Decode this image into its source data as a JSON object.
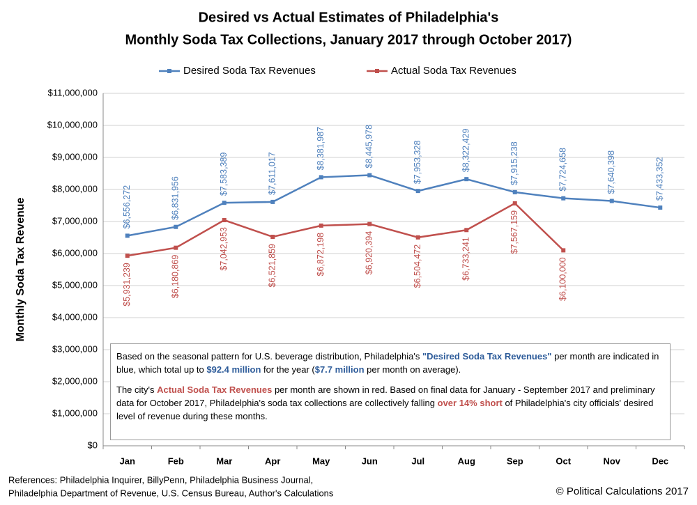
{
  "chart_data": {
    "type": "line",
    "title": [
      "Desired vs Actual Estimates of Philadelphia's",
      "Monthly Soda Tax Collections, January 2017 through October 2017)"
    ],
    "y_axis_label": "Monthly Soda Tax Revenue",
    "categories": [
      "Jan",
      "Feb",
      "Mar",
      "Apr",
      "May",
      "Jun",
      "Jul",
      "Aug",
      "Sep",
      "Oct",
      "Nov",
      "Dec"
    ],
    "series": [
      {
        "name": "Desired Soda Tax Revenues",
        "color": "#4f81bd",
        "values": [
          6556272,
          6831956,
          7583389,
          7611017,
          8381987,
          8445978,
          7953328,
          8322429,
          7915238,
          7724658,
          7640398,
          7433352
        ],
        "value_labels": [
          "$6,556,272",
          "$6,831,956",
          "$7,583,389",
          "$7,611,017",
          "$8,381,987",
          "$8,445,978",
          "$7,953,328",
          "$8,322,429",
          "$7,915,238",
          "$7,724,658",
          "$7,640,398",
          "$7,433,352"
        ],
        "label_position": "above"
      },
      {
        "name": "Actual Soda Tax Revenues",
        "color": "#c0504d",
        "values": [
          5931239,
          6180869,
          7042953,
          6521859,
          6872198,
          6920394,
          6504472,
          6733241,
          7567159,
          6100000,
          null,
          null
        ],
        "value_labels": [
          "$5,931,239",
          "$6,180,869",
          "$7,042,953",
          "$6,521,859",
          "$6,872,198",
          "$6,920,394",
          "$6,504,472",
          "$6,733,241",
          "$7,567,159",
          "$6,100,000",
          null,
          null
        ],
        "label_position": "below"
      }
    ],
    "ylim": [
      0,
      11000000
    ],
    "yticks": [
      {
        "value": 0,
        "label": "$0"
      },
      {
        "value": 1000000,
        "label": "$1,000,000"
      },
      {
        "value": 2000000,
        "label": "$2,000,000"
      },
      {
        "value": 3000000,
        "label": "$3,000,000"
      },
      {
        "value": 4000000,
        "label": "$4,000,000"
      },
      {
        "value": 5000000,
        "label": "$5,000,000"
      },
      {
        "value": 6000000,
        "label": "$6,000,000"
      },
      {
        "value": 7000000,
        "label": "$7,000,000"
      },
      {
        "value": 8000000,
        "label": "$8,000,000"
      },
      {
        "value": 9000000,
        "label": "$9,000,000"
      },
      {
        "value": 10000000,
        "label": "$10,000,000"
      },
      {
        "value": 11000000,
        "label": "$11,000,000"
      }
    ],
    "grid": true,
    "legend": "top",
    "annotation": [
      [
        {
          "text": "Based on the seasonal pattern for U.S. beverage distribution, Philadelphia's ",
          "color": "#000000",
          "bold": false
        },
        {
          "text": "\"Desired Soda Tax Revenues\"",
          "color": "#2e5c9a",
          "bold": true
        },
        {
          "text": " per month are indicated in blue, which total up to ",
          "color": "#000000",
          "bold": false
        },
        {
          "text": "$92.4 million",
          "color": "#2e5c9a",
          "bold": true
        },
        {
          "text": " for the year (",
          "color": "#000000",
          "bold": false
        },
        {
          "text": "$7.7 million",
          "color": "#2e5c9a",
          "bold": true
        },
        {
          "text": " per month on average).",
          "color": "#000000",
          "bold": false
        }
      ],
      [
        {
          "text": "The city's ",
          "color": "#000000",
          "bold": false
        },
        {
          "text": "Actual Soda Tax Revenues",
          "color": "#c0504d",
          "bold": true
        },
        {
          "text": " per month  are shown in red.  Based on final data for January - September 2017 and preliminary data for October 2017, Philadelphia's soda tax collections are collectively falling ",
          "color": "#000000",
          "bold": false
        },
        {
          "text": "over 14% short",
          "color": "#c0504d",
          "bold": true
        },
        {
          "text": " of Philadelphia's city officials' desired level of revenue during these months.",
          "color": "#000000",
          "bold": false
        }
      ]
    ],
    "references": [
      "References: Philadelphia Inquirer, BillyPenn, Philadelphia Business Journal,",
      "Philadelphia Department of Revenue, U.S. Census Bureau, Author's Calculations"
    ],
    "credit": "© Political Calculations 2017"
  }
}
